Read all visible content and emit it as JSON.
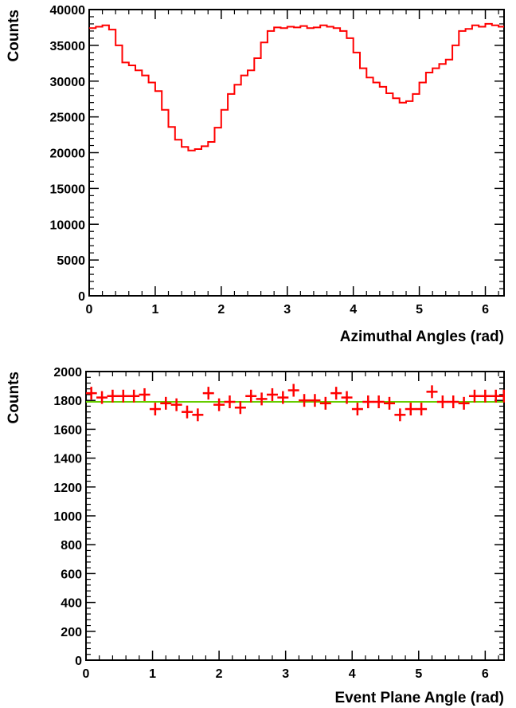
{
  "chart_data": [
    {
      "type": "line",
      "step": true,
      "xlabel": "Azimuthal Angles (rad)",
      "ylabel": "Counts",
      "xlim": [
        0,
        6.2832
      ],
      "ylim": [
        0,
        40000
      ],
      "xticks": [
        "0",
        "1",
        "2",
        "3",
        "4",
        "5",
        "6"
      ],
      "yticks": [
        "0",
        "5000",
        "10000",
        "15000",
        "20000",
        "25000",
        "30000",
        "35000",
        "40000"
      ],
      "grid": false,
      "color": "#ff0000",
      "x": [
        0.05,
        0.15,
        0.25,
        0.35,
        0.45,
        0.55,
        0.65,
        0.75,
        0.85,
        0.95,
        1.05,
        1.15,
        1.25,
        1.35,
        1.45,
        1.55,
        1.65,
        1.75,
        1.85,
        1.95,
        2.05,
        2.15,
        2.25,
        2.35,
        2.45,
        2.55,
        2.65,
        2.75,
        2.85,
        2.95,
        3.05,
        3.15,
        3.25,
        3.35,
        3.45,
        3.55,
        3.65,
        3.75,
        3.85,
        3.95,
        4.05,
        4.15,
        4.25,
        4.35,
        4.45,
        4.55,
        4.65,
        4.75,
        4.85,
        4.95,
        5.05,
        5.15,
        5.25,
        5.35,
        5.45,
        5.55,
        5.65,
        5.75,
        5.85,
        5.95,
        6.05,
        6.15,
        6.25
      ],
      "values": [
        37400,
        37600,
        37800,
        37200,
        35000,
        32600,
        32200,
        31500,
        30800,
        29800,
        28600,
        26000,
        23600,
        21800,
        20800,
        20300,
        20500,
        20900,
        21500,
        23500,
        26000,
        28200,
        29500,
        30800,
        31500,
        33200,
        35400,
        37000,
        37500,
        37400,
        37600,
        37500,
        37700,
        37400,
        37500,
        37800,
        37600,
        37400,
        37000,
        36000,
        34000,
        31800,
        30500,
        29800,
        29200,
        28300,
        27600,
        27000,
        27200,
        28200,
        29800,
        31200,
        31800,
        32400,
        33000,
        35000,
        37000,
        37300,
        37800,
        37600,
        38000,
        37800,
        37600
      ]
    },
    {
      "type": "scatter",
      "xlabel": "Event Plane Angle (rad)",
      "ylabel": "Counts",
      "xlim": [
        0,
        6.2832
      ],
      "ylim": [
        0,
        2000
      ],
      "xticks": [
        "0",
        "1",
        "2",
        "3",
        "4",
        "5",
        "6"
      ],
      "yticks": [
        "0",
        "200",
        "400",
        "600",
        "800",
        "1000",
        "1200",
        "1400",
        "1600",
        "1800",
        "2000"
      ],
      "grid": false,
      "marker_color": "#ff0000",
      "fit_color": "#66cc00",
      "fit_value": 1790,
      "x": [
        0.08,
        0.24,
        0.4,
        0.56,
        0.72,
        0.88,
        1.04,
        1.2,
        1.36,
        1.52,
        1.68,
        1.84,
        2.0,
        2.16,
        2.32,
        2.48,
        2.64,
        2.8,
        2.96,
        3.12,
        3.28,
        3.44,
        3.6,
        3.76,
        3.92,
        4.08,
        4.24,
        4.4,
        4.56,
        4.72,
        4.88,
        5.04,
        5.2,
        5.36,
        5.52,
        5.68,
        5.84,
        6.0,
        6.16,
        6.28
      ],
      "values": [
        1850,
        1820,
        1830,
        1830,
        1830,
        1840,
        1740,
        1780,
        1770,
        1720,
        1700,
        1850,
        1770,
        1790,
        1750,
        1830,
        1810,
        1840,
        1820,
        1870,
        1800,
        1800,
        1780,
        1850,
        1820,
        1740,
        1790,
        1790,
        1780,
        1700,
        1740,
        1740,
        1860,
        1790,
        1790,
        1780,
        1830,
        1830,
        1830,
        1830
      ]
    }
  ]
}
